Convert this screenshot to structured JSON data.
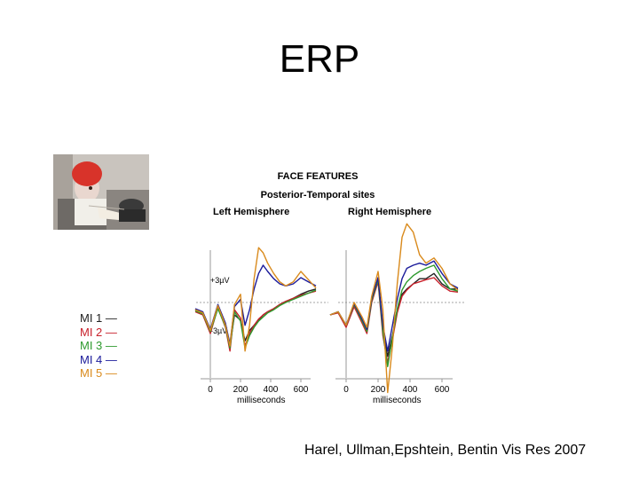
{
  "slide": {
    "title": "ERP",
    "citation": "Harel, Ullman,Epshtein, Bentin Vis Res 2007"
  },
  "colors": {
    "MI 1": "#222222",
    "MI 2": "#c8202a",
    "MI 3": "#2e9a2e",
    "MI 4": "#1a1a9a",
    "MI 5": "#d98a1c"
  },
  "legend": [
    {
      "label": "MI 1 —",
      "color": "#222222"
    },
    {
      "label": "MI 2 —",
      "color": "#c8202a"
    },
    {
      "label": "MI 3 —",
      "color": "#2e9a2e"
    },
    {
      "label": "MI 4 —",
      "color": "#1a1a9a"
    },
    {
      "label": "MI 5 —",
      "color": "#d98a1c"
    }
  ],
  "chart_data": {
    "type": "line",
    "title": "FACE FEATURES",
    "subtitle": "Posterior-Temporal sites",
    "panels": [
      {
        "name": "Left Hemisphere",
        "xlabel": "milliseconds"
      },
      {
        "name": "Right Hemisphere",
        "xlabel": "milliseconds"
      }
    ],
    "xticks": [
      "0",
      "200",
      "400",
      "600"
    ],
    "xlim": [
      -100,
      700
    ],
    "ylim": [
      -6,
      9
    ],
    "yticks": [
      "+3µV",
      "-3µV"
    ],
    "x": [
      -100,
      -50,
      0,
      50,
      100,
      130,
      160,
      200,
      230,
      260,
      290,
      320,
      350,
      380,
      420,
      460,
      500,
      550,
      600,
      650,
      700
    ],
    "series_left": [
      {
        "name": "MI 1",
        "values": [
          0.5,
          0.2,
          -1.5,
          0.8,
          -1.0,
          -3.0,
          0.0,
          -0.5,
          -2.5,
          -1.5,
          -1.0,
          -0.5,
          0.0,
          0.3,
          0.6,
          1.0,
          1.3,
          1.6,
          2.0,
          2.3,
          2.5
        ]
      },
      {
        "name": "MI 2",
        "values": [
          0.3,
          0.0,
          -1.8,
          0.7,
          -1.2,
          -3.5,
          0.5,
          -0.3,
          -3.0,
          -1.8,
          -1.0,
          -0.4,
          0.0,
          0.3,
          0.6,
          1.0,
          1.3,
          1.6,
          1.9,
          2.1,
          2.3
        ]
      },
      {
        "name": "MI 3",
        "values": [
          0.4,
          0.1,
          -1.6,
          0.6,
          -1.1,
          -3.2,
          0.3,
          -0.6,
          -3.2,
          -2.0,
          -1.2,
          -0.6,
          -0.2,
          0.2,
          0.5,
          0.9,
          1.2,
          1.5,
          1.8,
          2.1,
          2.4
        ]
      },
      {
        "name": "MI 4",
        "values": [
          0.6,
          0.3,
          -1.4,
          1.0,
          -0.8,
          -2.8,
          0.8,
          1.5,
          -1.0,
          0.5,
          2.5,
          4.0,
          4.8,
          4.2,
          3.5,
          3.0,
          2.8,
          3.0,
          3.6,
          3.2,
          2.8
        ]
      },
      {
        "name": "MI 5",
        "values": [
          0.5,
          0.2,
          -1.5,
          0.9,
          -1.0,
          -3.0,
          1.0,
          2.0,
          -3.5,
          -1.0,
          3.5,
          6.5,
          6.0,
          5.0,
          4.0,
          3.2,
          2.8,
          3.2,
          4.2,
          3.4,
          2.6
        ]
      }
    ],
    "series_right": [
      {
        "name": "MI 1",
        "values": [
          0.0,
          0.3,
          -1.0,
          1.0,
          -0.5,
          -1.5,
          1.5,
          3.5,
          -1.5,
          -4.0,
          -2.0,
          0.5,
          2.0,
          2.5,
          3.0,
          3.5,
          3.5,
          4.0,
          3.0,
          2.5,
          2.5
        ]
      },
      {
        "name": "MI 2",
        "values": [
          0.0,
          0.2,
          -1.2,
          0.8,
          -0.8,
          -1.8,
          1.2,
          3.2,
          -2.0,
          -4.6,
          -2.4,
          0.2,
          1.8,
          2.4,
          3.0,
          3.2,
          3.4,
          3.6,
          2.8,
          2.3,
          2.2
        ]
      },
      {
        "name": "MI 3",
        "values": [
          0.0,
          0.3,
          -1.0,
          1.0,
          -0.6,
          -1.6,
          1.4,
          3.4,
          -1.6,
          -5.0,
          -2.2,
          0.6,
          2.4,
          3.2,
          3.8,
          4.2,
          4.5,
          4.8,
          3.5,
          2.5,
          2.3
        ]
      },
      {
        "name": "MI 4",
        "values": [
          0.0,
          0.3,
          -1.0,
          1.1,
          -0.4,
          -1.4,
          1.6,
          3.6,
          -1.0,
          -3.5,
          -1.0,
          1.5,
          3.5,
          4.5,
          4.8,
          5.0,
          4.8,
          5.2,
          4.0,
          3.0,
          2.6
        ]
      },
      {
        "name": "MI 5",
        "values": [
          0.0,
          0.3,
          -1.0,
          1.2,
          -0.2,
          -1.2,
          1.8,
          4.2,
          0.5,
          -7.5,
          -3.0,
          3.0,
          7.5,
          8.8,
          8.0,
          5.8,
          5.0,
          5.5,
          4.5,
          3.0,
          2.4
        ]
      }
    ]
  }
}
